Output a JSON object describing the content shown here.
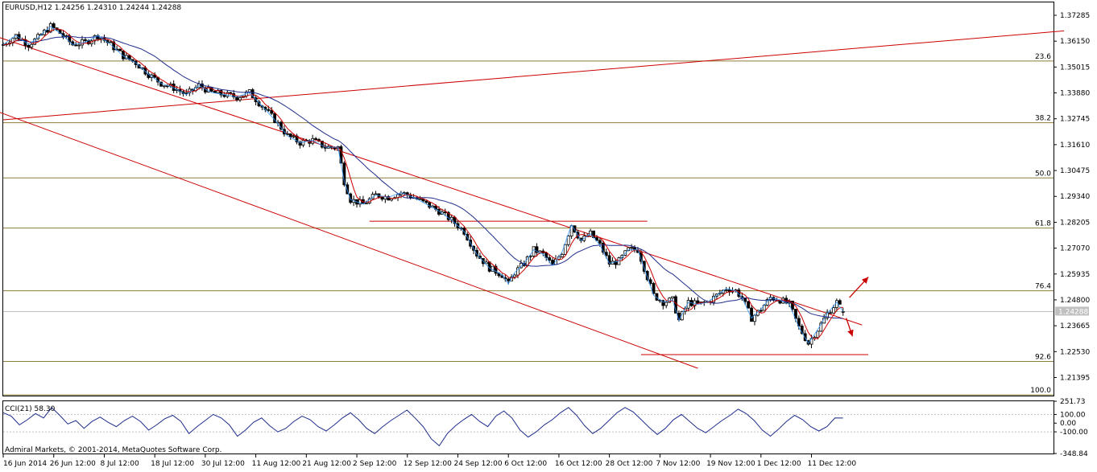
{
  "chart_data": [
    {
      "type": "candlestick",
      "title": "EURUSD,H12",
      "ohlc_header": "EURUSD,H12  1.24256 1.24310 1.24244 1.24288",
      "symbol": "EURUSD",
      "timeframe": "H12",
      "last_bar": {
        "open": 1.24256,
        "high": 1.2431,
        "low": 1.24244,
        "close": 1.24288
      },
      "current_price_label": "1.24288",
      "ylim": [
        1.206,
        1.3785
      ],
      "y_tick_labels": [
        "1.37285",
        "1.36150",
        "1.35015",
        "1.33880",
        "1.32745",
        "1.31610",
        "1.30475",
        "1.29340",
        "1.28205",
        "1.27070",
        "1.25935",
        "1.24800",
        "1.23665",
        "1.22530",
        "1.21395"
      ],
      "x_tick_labels": [
        "16 Jun 2014",
        "26 Jun 12:00",
        "8 Jul 12:00",
        "18 Jul 12:00",
        "30 Jul 12:00",
        "11 Aug 12:00",
        "21 Aug 12:00",
        "2 Sep 12:00",
        "12 Sep 12:00",
        "24 Sep 12:00",
        "6 Oct 12:00",
        "16 Oct 12:00",
        "28 Oct 12:00",
        "7 Nov 12:00",
        "19 Nov 12:00",
        "1 Dec 12:00",
        "11 Dec 12:00"
      ],
      "fibonacci_levels": [
        {
          "label": "23.6",
          "price": 1.3528
        },
        {
          "label": "38.2",
          "price": 1.3257
        },
        {
          "label": "50.0",
          "price": 1.3015
        },
        {
          "label": "61.8",
          "price": 1.2795
        },
        {
          "label": "76.4",
          "price": 1.252
        },
        {
          "label": "92.6",
          "price": 1.221
        },
        {
          "label": "100.0",
          "price": 1.2063
        }
      ],
      "close_path": [
        {
          "bar": 0,
          "price": 1.36
        },
        {
          "bar": 4,
          "price": 1.364
        },
        {
          "bar": 8,
          "price": 1.36
        },
        {
          "bar": 11,
          "price": 1.363
        },
        {
          "bar": 15,
          "price": 1.368
        },
        {
          "bar": 18,
          "price": 1.365
        },
        {
          "bar": 22,
          "price": 1.36
        },
        {
          "bar": 26,
          "price": 1.361
        },
        {
          "bar": 30,
          "price": 1.364
        },
        {
          "bar": 34,
          "price": 1.36
        },
        {
          "bar": 38,
          "price": 1.355
        },
        {
          "bar": 42,
          "price": 1.352
        },
        {
          "bar": 46,
          "price": 1.347
        },
        {
          "bar": 50,
          "price": 1.343
        },
        {
          "bar": 54,
          "price": 1.341
        },
        {
          "bar": 58,
          "price": 1.338
        },
        {
          "bar": 62,
          "price": 1.342
        },
        {
          "bar": 66,
          "price": 1.339
        },
        {
          "bar": 70,
          "price": 1.338
        },
        {
          "bar": 74,
          "price": 1.337
        },
        {
          "bar": 78,
          "price": 1.339
        },
        {
          "bar": 82,
          "price": 1.333
        },
        {
          "bar": 86,
          "price": 1.327
        },
        {
          "bar": 90,
          "price": 1.32
        },
        {
          "bar": 94,
          "price": 1.317
        },
        {
          "bar": 98,
          "price": 1.318
        },
        {
          "bar": 102,
          "price": 1.315
        },
        {
          "bar": 106,
          "price": 1.315
        },
        {
          "bar": 108,
          "price": 1.3
        },
        {
          "bar": 110,
          "price": 1.292
        },
        {
          "bar": 114,
          "price": 1.29
        },
        {
          "bar": 118,
          "price": 1.294
        },
        {
          "bar": 122,
          "price": 1.293
        },
        {
          "bar": 126,
          "price": 1.295
        },
        {
          "bar": 130,
          "price": 1.293
        },
        {
          "bar": 134,
          "price": 1.29
        },
        {
          "bar": 138,
          "price": 1.287
        },
        {
          "bar": 142,
          "price": 1.283
        },
        {
          "bar": 146,
          "price": 1.278
        },
        {
          "bar": 150,
          "price": 1.268
        },
        {
          "bar": 154,
          "price": 1.262
        },
        {
          "bar": 158,
          "price": 1.259
        },
        {
          "bar": 160,
          "price": 1.255
        },
        {
          "bar": 162,
          "price": 1.26
        },
        {
          "bar": 165,
          "price": 1.264
        },
        {
          "bar": 168,
          "price": 1.27
        },
        {
          "bar": 171,
          "price": 1.268
        },
        {
          "bar": 174,
          "price": 1.263
        },
        {
          "bar": 177,
          "price": 1.269
        },
        {
          "bar": 180,
          "price": 1.281
        },
        {
          "bar": 183,
          "price": 1.274
        },
        {
          "bar": 186,
          "price": 1.277
        },
        {
          "bar": 189,
          "price": 1.272
        },
        {
          "bar": 192,
          "price": 1.264
        },
        {
          "bar": 195,
          "price": 1.265
        },
        {
          "bar": 198,
          "price": 1.27
        },
        {
          "bar": 201,
          "price": 1.27
        },
        {
          "bar": 203,
          "price": 1.262
        },
        {
          "bar": 206,
          "price": 1.25
        },
        {
          "bar": 209,
          "price": 1.247
        },
        {
          "bar": 212,
          "price": 1.248
        },
        {
          "bar": 214,
          "price": 1.239
        },
        {
          "bar": 217,
          "price": 1.247
        },
        {
          "bar": 220,
          "price": 1.246
        },
        {
          "bar": 223,
          "price": 1.247
        },
        {
          "bar": 226,
          "price": 1.25
        },
        {
          "bar": 229,
          "price": 1.253
        },
        {
          "bar": 232,
          "price": 1.252
        },
        {
          "bar": 234,
          "price": 1.249
        },
        {
          "bar": 237,
          "price": 1.24
        },
        {
          "bar": 240,
          "price": 1.244
        },
        {
          "bar": 243,
          "price": 1.249
        },
        {
          "bar": 246,
          "price": 1.248
        },
        {
          "bar": 249,
          "price": 1.246
        },
        {
          "bar": 252,
          "price": 1.236
        },
        {
          "bar": 255,
          "price": 1.229
        },
        {
          "bar": 258,
          "price": 1.235
        },
        {
          "bar": 261,
          "price": 1.242
        },
        {
          "bar": 264,
          "price": 1.247
        },
        {
          "bar": 266,
          "price": 1.2429
        }
      ],
      "trendlines": [
        {
          "name": "upper-channel",
          "from": {
            "bar": -40,
            "price": 1.381
          },
          "to": {
            "bar": 272,
            "price": 1.237
          }
        },
        {
          "name": "lower-channel",
          "from": {
            "bar": -40,
            "price": 1.35
          },
          "to": {
            "bar": 220,
            "price": 1.218
          }
        },
        {
          "name": "rising-line",
          "from": {
            "bar": 0,
            "price": 1.327
          },
          "to": {
            "bar": 336,
            "price": 1.366
          }
        },
        {
          "name": "support-sep",
          "from": {
            "bar": 116,
            "price": 1.2825
          },
          "to": {
            "bar": 204,
            "price": 1.2825
          }
        },
        {
          "name": "support-dec",
          "from": {
            "bar": 202,
            "price": 1.224
          },
          "to": {
            "bar": 274,
            "price": 1.224
          }
        }
      ],
      "arrows": [
        {
          "name": "up-arrow",
          "from": {
            "bar": 268,
            "price": 1.249
          },
          "to": {
            "bar": 274,
            "price": 1.258
          }
        },
        {
          "name": "down-arrow",
          "from": {
            "bar": 267,
            "price": 1.24
          },
          "to": {
            "bar": 269,
            "price": 1.232
          }
        }
      ]
    },
    {
      "type": "line",
      "title": "CCI(21) 58.30",
      "indicator": "CCI",
      "period": 21,
      "current_value": 58.3,
      "ylim": [
        -348.84,
        251.73
      ],
      "y_tick_labels": [
        "251.73",
        "100.00",
        "0.00",
        "-100.00",
        "-348.84"
      ],
      "levels": [
        100,
        -100
      ],
      "values": [
        120,
        80,
        -20,
        40,
        110,
        60,
        180,
        90,
        -10,
        30,
        -60,
        20,
        70,
        10,
        -40,
        30,
        80,
        20,
        -80,
        -20,
        50,
        90,
        20,
        -120,
        -40,
        30,
        100,
        60,
        -20,
        -150,
        -80,
        10,
        60,
        -30,
        -100,
        -60,
        20,
        80,
        40,
        -40,
        -90,
        -20,
        60,
        120,
        40,
        -60,
        -120,
        -40,
        30,
        90,
        150,
        60,
        -40,
        -180,
        -260,
        -120,
        -30,
        40,
        100,
        20,
        -40,
        80,
        140,
        60,
        -80,
        -160,
        -100,
        -20,
        40,
        120,
        180,
        90,
        -30,
        -120,
        -60,
        30,
        120,
        180,
        130,
        40,
        -50,
        -130,
        -60,
        40,
        100,
        20,
        -60,
        -110,
        -40,
        30,
        90,
        160,
        110,
        30,
        -80,
        -150,
        -70,
        20,
        90,
        40,
        -40,
        -90,
        -40,
        60,
        58.3
      ]
    }
  ],
  "chart_colors": {
    "background": "#ffffff",
    "grid": "#c0c0c0",
    "fib": "#8b7d3a",
    "candle": "#000000",
    "bull_body": "#ffffff",
    "bear_body": "#000000",
    "ma_slow": "#1f2d8c",
    "ma_fast": "#cc0000",
    "zigzag_fast": "#3399ff",
    "trendline": "#cc0000",
    "cci_line": "#1f2d8c",
    "price_tag": "#c0c0c0"
  },
  "copyright": "Admiral Markets, © 2001-2014, MetaQuotes Software Corp."
}
